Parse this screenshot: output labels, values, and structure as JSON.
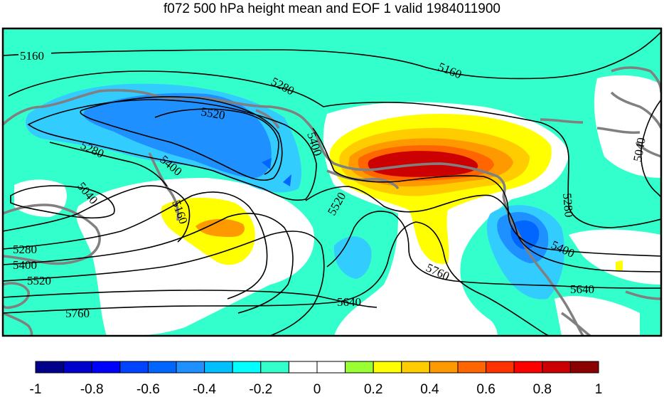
{
  "title": "f072 500 hPa height mean and EOF 1 valid 1984011900",
  "colors": {
    "background": "#ffffff",
    "neg_light": "#33ffcc",
    "neg_mid": "#33ccff",
    "neg_strong": "#1e90ff",
    "neg_deep": "#0066ff",
    "pos_light": "#ffff00",
    "pos_mid": "#ffcc00",
    "pos_orange": "#ff9900",
    "pos_dark": "#ff6600",
    "pos_red": "#cc0000",
    "coastline": "#808080",
    "contour": "#000000"
  },
  "contour_labels": [
    "5160",
    "5280",
    "5160",
    "5520",
    "5280",
    "5400",
    "5400",
    "5040",
    "5160",
    "5520",
    "5280",
    "5400",
    "5520",
    "5760",
    "5760",
    "5640",
    "5640",
    "5400",
    "5280",
    "5040"
  ],
  "colorbar": {
    "colors": [
      "#00008b",
      "#0000cd",
      "#0000ff",
      "#0044ff",
      "#0066ff",
      "#1e90ff",
      "#00bfff",
      "#00ffff",
      "#33ffcc",
      "#ffffff",
      "#ffffff",
      "#99ff33",
      "#ffff00",
      "#ffcc00",
      "#ff9900",
      "#ff6600",
      "#ff3300",
      "#ff0000",
      "#cc0000",
      "#8b0000"
    ],
    "tick_labels": [
      "-1",
      "-0.8",
      "-0.6",
      "-0.4",
      "-0.2",
      "0",
      "0.2",
      "0.4",
      "0.6",
      "0.8",
      "1"
    ]
  }
}
